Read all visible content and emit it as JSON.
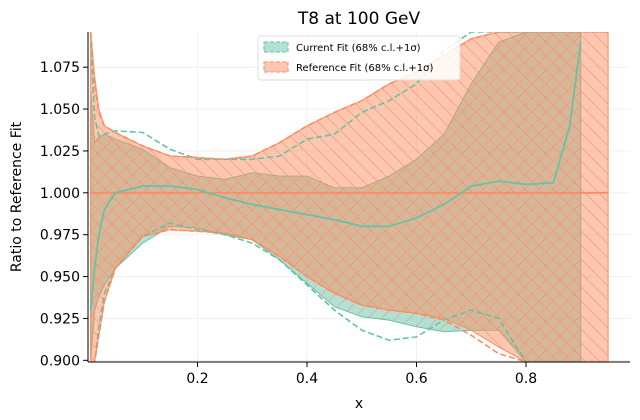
{
  "chart_data": {
    "type": "area",
    "title": "T8 at 100 GeV",
    "xlabel": "x",
    "ylabel": "Ratio to Reference Fit",
    "xlim": [
      0.0,
      0.99
    ],
    "ylim": [
      0.899,
      1.096
    ],
    "x_ticks": [
      0.2,
      0.4,
      0.6,
      0.8
    ],
    "x_tick_labels": [
      "0.2",
      "0.4",
      "0.6",
      "0.8"
    ],
    "y_ticks": [
      0.9,
      0.925,
      0.95,
      0.975,
      1.0,
      1.025,
      1.05,
      1.075
    ],
    "y_tick_labels": [
      "0.900",
      "0.925",
      "0.950",
      "0.975",
      "1.000",
      "1.025",
      "1.050",
      "1.075"
    ],
    "grid": "faint",
    "legend_position": "top-center",
    "colors": {
      "current": "#66c2a5",
      "reference": "#fc8d62"
    },
    "series": [
      {
        "name": "Current Fit (68% c.l.+1σ)",
        "x": [
          0.005,
          0.012,
          0.02,
          0.03,
          0.05,
          0.1,
          0.15,
          0.2,
          0.25,
          0.3,
          0.35,
          0.4,
          0.45,
          0.5,
          0.55,
          0.6,
          0.65,
          0.7,
          0.75,
          0.8,
          0.85,
          0.88,
          0.9
        ],
        "central": [
          0.93,
          0.955,
          0.975,
          0.99,
          1.0,
          1.004,
          1.004,
          1.002,
          0.997,
          0.993,
          0.99,
          0.987,
          0.984,
          0.98,
          0.98,
          0.985,
          0.993,
          1.004,
          1.007,
          1.005,
          1.006,
          1.04,
          1.09
        ],
        "upper": [
          1.06,
          1.03,
          1.033,
          1.035,
          1.032,
          1.026,
          1.015,
          1.01,
          1.008,
          1.012,
          1.01,
          1.01,
          1.003,
          1.003,
          1.01,
          1.02,
          1.035,
          1.065,
          1.09,
          1.096,
          1.096,
          1.096,
          1.096
        ],
        "lower": [
          0.9,
          0.93,
          0.938,
          0.945,
          0.955,
          0.97,
          0.98,
          0.979,
          0.975,
          0.972,
          0.96,
          0.946,
          0.932,
          0.926,
          0.924,
          0.92,
          0.917,
          0.918,
          0.918,
          0.899,
          0.899,
          0.899,
          0.899
        ],
        "upper_dashed": [
          1.09,
          1.045,
          1.034,
          1.035,
          1.037,
          1.036,
          1.026,
          1.02,
          1.02,
          1.02,
          1.022,
          1.032,
          1.035,
          1.048,
          1.055,
          1.065,
          1.085,
          1.096,
          1.096,
          1.096,
          1.096,
          1.096,
          1.096
        ],
        "lower_dashed": [
          0.899,
          0.899,
          0.92,
          0.94,
          0.955,
          0.974,
          0.982,
          0.978,
          0.975,
          0.97,
          0.96,
          0.945,
          0.93,
          0.918,
          0.912,
          0.914,
          0.924,
          0.93,
          0.925,
          0.899,
          0.899,
          0.899,
          0.899
        ]
      },
      {
        "name": "Reference Fit (68% c.l.+1σ)",
        "x": [
          0.005,
          0.012,
          0.02,
          0.03,
          0.05,
          0.1,
          0.15,
          0.2,
          0.25,
          0.3,
          0.35,
          0.4,
          0.45,
          0.5,
          0.55,
          0.6,
          0.65,
          0.7,
          0.75,
          0.8,
          0.85,
          0.88,
          0.9,
          0.95
        ],
        "central": [
          1.0,
          1.0,
          1.0,
          1.0,
          1.0,
          1.0,
          1.0,
          1.0,
          1.0,
          1.0,
          1.0,
          1.0,
          1.0,
          1.0,
          1.0,
          1.0,
          1.0,
          1.0,
          1.0,
          1.0,
          1.0,
          1.0,
          1.0,
          1.0
        ],
        "upper": [
          1.096,
          1.07,
          1.05,
          1.04,
          1.036,
          1.028,
          1.022,
          1.021,
          1.02,
          1.022,
          1.03,
          1.04,
          1.048,
          1.055,
          1.065,
          1.072,
          1.082,
          1.092,
          1.096,
          1.096,
          1.096,
          1.096,
          1.096,
          1.096
        ],
        "lower": [
          0.899,
          0.899,
          0.915,
          0.935,
          0.955,
          0.974,
          0.978,
          0.977,
          0.976,
          0.972,
          0.962,
          0.95,
          0.94,
          0.933,
          0.93,
          0.928,
          0.925,
          0.918,
          0.908,
          0.899,
          0.899,
          0.899,
          0.899,
          0.899
        ],
        "upper_dashed": [
          1.096,
          1.065,
          1.048,
          1.04,
          1.036,
          1.028,
          1.022,
          1.021,
          1.02,
          1.022,
          1.03,
          1.04,
          1.048,
          1.055,
          1.065,
          1.072,
          1.082,
          1.092,
          1.096,
          1.096,
          1.096,
          1.096,
          1.096,
          1.096
        ],
        "lower_dashed": [
          0.899,
          0.899,
          0.915,
          0.935,
          0.955,
          0.974,
          0.978,
          0.977,
          0.976,
          0.972,
          0.962,
          0.95,
          0.94,
          0.933,
          0.93,
          0.928,
          0.924,
          0.915,
          0.904,
          0.899,
          0.899,
          0.899,
          0.899,
          0.899
        ]
      }
    ]
  }
}
